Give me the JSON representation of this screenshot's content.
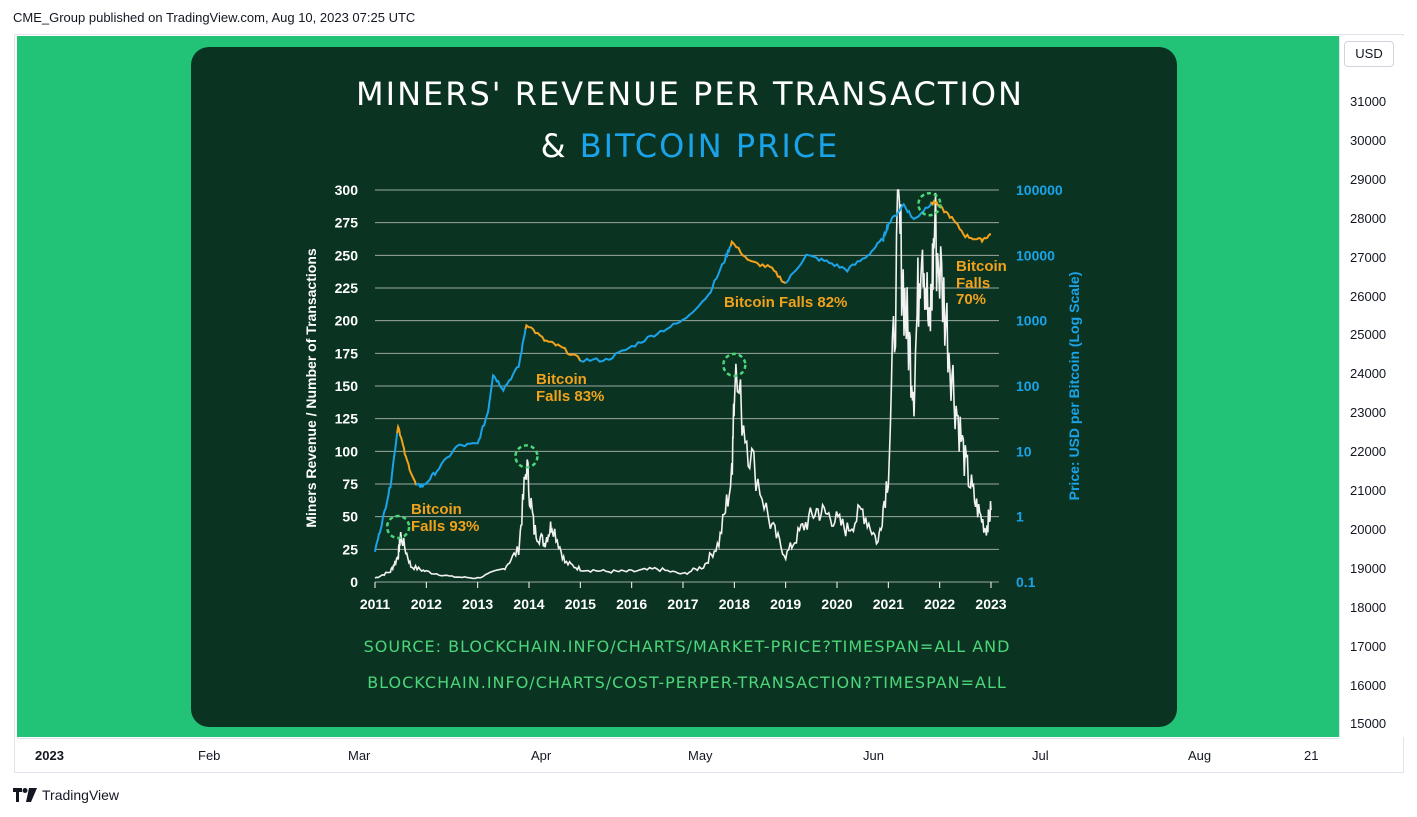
{
  "header": {
    "publisher_line": "CME_Group published on TradingView.com, Aug 10, 2023 07:25 UTC"
  },
  "price_axis": {
    "currency": "USD",
    "ticks": [
      "31000",
      "30000",
      "29000",
      "28000",
      "27000",
      "26000",
      "25000",
      "24000",
      "23000",
      "22000",
      "21000",
      "20000",
      "19000",
      "18000",
      "17000",
      "16000",
      "15000"
    ]
  },
  "time_axis": {
    "ticks": [
      "2023",
      "Feb",
      "Mar",
      "Apr",
      "May",
      "Jun",
      "Jul",
      "Aug",
      "21"
    ]
  },
  "footer": {
    "brand": "TradingView",
    "logo_icon": "tradingview-logo-icon"
  },
  "colors": {
    "background_green": "#22c277",
    "card": "#0b3322",
    "blue": "#1aa3e8",
    "orange": "#f0a21c",
    "white_series": "#f2f2f2",
    "source_green": "#4cd67a"
  },
  "chart_data": {
    "type": "line",
    "title_line1": "MINERS' REVENUE PER TRANSACTION",
    "title_amp": "&",
    "title_line2": "BITCOIN PRICE",
    "ylabel_left": "Miners Revenue / Number of Transactions",
    "ylabel_right": "Price: USD per Bitcoin (Log Scale)",
    "ylim_left": [
      0,
      300
    ],
    "left_ticks": [
      "300",
      "275",
      "250",
      "225",
      "200",
      "175",
      "150",
      "125",
      "100",
      "75",
      "50",
      "25",
      "0"
    ],
    "right_ticks": [
      "100000",
      "10000",
      "1000",
      "100",
      "10",
      "1",
      "0.1"
    ],
    "ylim_right_log": [
      0.1,
      100000
    ],
    "x_ticks": [
      "2011",
      "2012",
      "2013",
      "2014",
      "2015",
      "2016",
      "2017",
      "2018",
      "2019",
      "2020",
      "2021",
      "2022",
      "2023"
    ],
    "grid": true,
    "series": [
      {
        "name": "Miners Revenue / Number of Transactions",
        "color": "white",
        "x": [
          2011.0,
          2011.3,
          2011.45,
          2011.5,
          2011.7,
          2012.0,
          2012.5,
          2013.0,
          2013.5,
          2013.8,
          2013.95,
          2014.1,
          2014.3,
          2014.45,
          2014.7,
          2015.0,
          2015.5,
          2016.0,
          2016.5,
          2017.0,
          2017.4,
          2017.7,
          2017.95,
          2018.0,
          2018.3,
          2018.7,
          2019.0,
          2019.3,
          2019.6,
          2019.9,
          2020.2,
          2020.5,
          2020.8,
          2021.0,
          2021.2,
          2021.35,
          2021.5,
          2021.65,
          2021.8,
          2021.9,
          2022.1,
          2022.3,
          2022.5,
          2022.7,
          2022.9,
          2023.0
        ],
        "y": [
          3,
          8,
          20,
          36,
          12,
          8,
          4,
          3,
          10,
          25,
          90,
          40,
          30,
          45,
          15,
          10,
          8,
          8,
          10,
          6,
          12,
          30,
          80,
          160,
          100,
          45,
          20,
          40,
          55,
          50,
          40,
          55,
          30,
          85,
          275,
          200,
          150,
          280,
          185,
          270,
          210,
          140,
          90,
          60,
          40,
          55
        ]
      },
      {
        "name": "Bitcoin price (log scale)",
        "color": "blue/orange",
        "x": [
          2011.0,
          2011.15,
          2011.3,
          2011.45,
          2011.6,
          2011.8,
          2011.95,
          2012.2,
          2012.6,
          2013.0,
          2013.2,
          2013.3,
          2013.5,
          2013.8,
          2013.95,
          2014.3,
          2014.6,
          2015.0,
          2015.5,
          2016.0,
          2016.5,
          2017.0,
          2017.5,
          2017.8,
          2017.95,
          2018.3,
          2018.7,
          2019.0,
          2019.4,
          2019.8,
          2020.2,
          2020.6,
          2020.9,
          2021.0,
          2021.3,
          2021.5,
          2021.8,
          2021.9,
          2022.2,
          2022.5,
          2022.8,
          2023.0
        ],
        "y": [
          0.3,
          0.9,
          3,
          25,
          8,
          3,
          3,
          5,
          12,
          13,
          40,
          150,
          90,
          200,
          900,
          500,
          400,
          250,
          250,
          400,
          650,
          1000,
          2500,
          8000,
          16000,
          8000,
          6500,
          3700,
          10000,
          8000,
          6000,
          10000,
          18000,
          30000,
          60000,
          35000,
          60000,
          65000,
          40000,
          20000,
          17000,
          21000
        ]
      }
    ],
    "annotations": [
      {
        "text": "Bitcoin Falls 93%",
        "line1": "Bitcoin",
        "line2": "Falls 93%"
      },
      {
        "text": "Bitcoin Falls 83%",
        "line1": "Bitcoin",
        "line2": "Falls 83%"
      },
      {
        "text": "Bitcoin Falls 82%"
      },
      {
        "text": "Bitcoin Falls 70%",
        "line1": "Bitcoin",
        "line2": "Falls",
        "line3": "70%"
      }
    ],
    "source_line1": "SOURCE: BLOCKCHAIN.INFO/CHARTS/MARKET-PRICE?TIMESPAN=ALL AND",
    "source_line2": "BLOCKCHAIN.INFO/CHARTS/COST-PERPER-TRANSACTION?TIMESPAN=ALL"
  }
}
